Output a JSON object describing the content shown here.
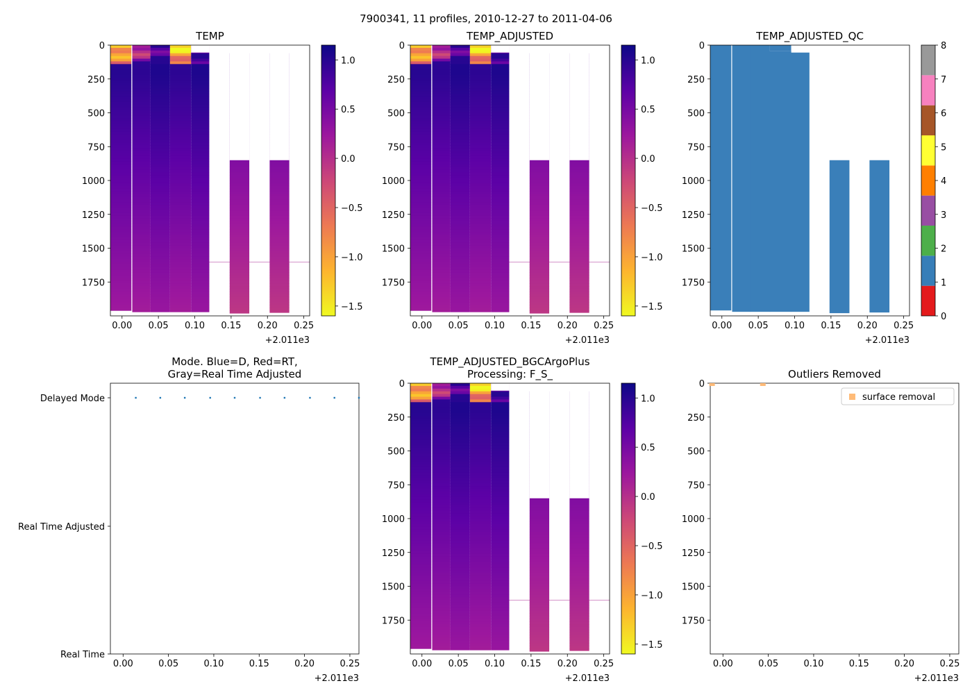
{
  "suptitle": "7900341, 11 profiles, 2010-12-27 to 2011-04-06",
  "x_offset_label": "+2.011e3",
  "x_ticks": [
    "0.00",
    "0.05",
    "0.10",
    "0.15",
    "0.20",
    "0.25"
  ],
  "x_tick_values": [
    0.0,
    0.05,
    0.1,
    0.15,
    0.2,
    0.25
  ],
  "x_range": [
    -0.016,
    0.258
  ],
  "y_ticks": [
    "0",
    "250",
    "500",
    "750",
    "1000",
    "1250",
    "1500",
    "1750"
  ],
  "y_tick_values": [
    0,
    250,
    500,
    750,
    1000,
    1250,
    1500,
    1750
  ],
  "y_range": [
    0,
    2000
  ],
  "profiles": [
    {
      "x0": -0.016,
      "x1": 0.013,
      "depth": 1960
    },
    {
      "x0": 0.014,
      "x1": 0.039,
      "depth": 1970
    },
    {
      "x0": 0.039,
      "x1": 0.066,
      "depth": 1970
    },
    {
      "x0": 0.066,
      "x1": 0.095,
      "depth": 1970
    },
    {
      "x0": 0.095,
      "x1": 0.12,
      "depth": 1970
    },
    {
      "x0": 0.12,
      "x1": 0.148,
      "depth": 1600
    },
    {
      "x0": 0.148,
      "x1": 0.175,
      "depth": 1980
    },
    {
      "x0": 0.175,
      "x1": 0.203,
      "depth": 1600
    },
    {
      "x0": 0.203,
      "x1": 0.23,
      "depth": 1975
    },
    {
      "x0": 0.23,
      "x1": 0.258,
      "depth": 1600
    }
  ],
  "colorbar_temp": {
    "range": [
      -1.6,
      1.15
    ],
    "ticks": [
      1.0,
      0.5,
      0.0,
      -0.5,
      -1.0,
      -1.5
    ],
    "tick_labels": [
      "1.0",
      "0.5",
      "0.0",
      "−0.5",
      "−1.0",
      "−1.5"
    ],
    "colormap": [
      "#f0f921",
      "#fdb42f",
      "#ed7953",
      "#cc4778",
      "#9c179e",
      "#5c01a6",
      "#0d0887"
    ]
  },
  "qc_colorbar": {
    "ticks": [
      "0",
      "1",
      "2",
      "3",
      "4",
      "5",
      "6",
      "7",
      "8"
    ],
    "colors": [
      "#e41a1c",
      "#377eb8",
      "#4daf4a",
      "#984ea3",
      "#ff7f00",
      "#ffff33",
      "#a65628",
      "#f781bf",
      "#999999"
    ],
    "fill_color": "#3a7fb9"
  },
  "chart_data": [
    {
      "type": "heatmap",
      "title": "TEMP",
      "xlabel": "",
      "ylabel": "",
      "ylim": [
        2000,
        0
      ],
      "variable": "TEMP"
    },
    {
      "type": "heatmap",
      "title": "TEMP_ADJUSTED",
      "xlabel": "",
      "ylabel": "",
      "ylim": [
        2000,
        0
      ],
      "variable": "TEMP_ADJUSTED"
    },
    {
      "type": "heatmap",
      "title": "TEMP_ADJUSTED_QC",
      "xlabel": "",
      "ylabel": "",
      "ylim": [
        2000,
        0
      ],
      "qc_value": 1
    },
    {
      "type": "scatter",
      "title_line1": "Mode. Blue=D, Red=RT,",
      "title_line2": "Gray=Real Time Adjusted",
      "y_categories": [
        "Delayed Mode",
        "Real Time Adjusted",
        "Real Time"
      ],
      "points_x": [
        0.014,
        0.041,
        0.068,
        0.096,
        0.123,
        0.151,
        0.178,
        0.206,
        0.233,
        0.26
      ],
      "points_category": "Delayed Mode",
      "point_color": "#1f77b4"
    },
    {
      "type": "heatmap",
      "title_line1": "TEMP_ADJUSTED_BGCArgoPlus",
      "title_line2": "Processing: F_S_",
      "ylim": [
        2000,
        0
      ],
      "variable": "TEMP_ADJUSTED_BGCArgoPlus"
    },
    {
      "type": "scatter",
      "title": "Outliers Removed",
      "legend": "surface removal",
      "legend_location": "top-right",
      "marker_color": "#ffbb78",
      "points": [
        {
          "x": -0.012,
          "y": 2
        },
        {
          "x": 0.044,
          "y": 2
        }
      ],
      "ylim": [
        2000,
        0
      ]
    }
  ]
}
